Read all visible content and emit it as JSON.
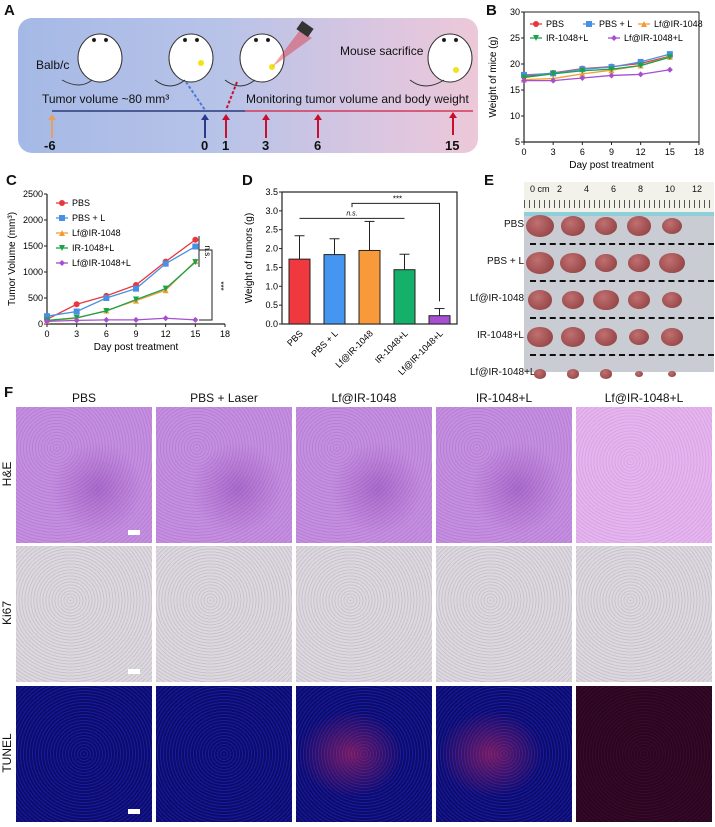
{
  "panels": {
    "A": {
      "label": "A",
      "strain": "Balb/c",
      "left_caption": "Tumor volume ~80 mm³",
      "right_caption": "Monitoring tumor volume and body weight",
      "sacrifice_caption": "Mouse sacrifice",
      "timeline_days": [
        "-6",
        "0",
        "1",
        "3",
        "6",
        "15"
      ],
      "colors": {
        "bg_left": "#a9bde6",
        "bg_right": "#e8c9dc",
        "line_left": "#2a3a7a",
        "line_right": "#d23a5a",
        "arrow_start": "#e8a060",
        "arrow_blue": "#2a3a8a",
        "arrow_red": "#c8102e"
      }
    },
    "B": {
      "label": "B"
    },
    "C": {
      "label": "C"
    },
    "D": {
      "label": "D"
    },
    "E": {
      "label": "E",
      "ruler_labels": [
        "0 cm",
        "2",
        "4",
        "6",
        "8",
        "10",
        "12"
      ],
      "rows": [
        "PBS",
        "PBS + L",
        "Lf@IR-1048",
        "IR-1048+L",
        "Lf@IR-1048+L"
      ]
    },
    "F": {
      "label": "F",
      "columns": [
        "PBS",
        "PBS + Laser",
        "Lf@IR-1048",
        "IR-1048+L",
        "Lf@IR-1048+L"
      ],
      "rows": [
        "H&E",
        "Ki67",
        "TUNEL"
      ]
    }
  },
  "chart_data": [
    {
      "id": "B",
      "type": "line",
      "title": "",
      "xlabel": "Day post treatment",
      "ylabel": "Weight of mice (g)",
      "x": [
        0,
        3,
        6,
        9,
        12,
        15
      ],
      "xlim": [
        0,
        18
      ],
      "ylim": [
        5,
        30
      ],
      "xticks": [
        0,
        3,
        6,
        9,
        12,
        15,
        18
      ],
      "yticks": [
        5,
        10,
        15,
        20,
        25,
        30
      ],
      "legend_position": "top-inside",
      "series": [
        {
          "name": "PBS",
          "color": "#e8383d",
          "marker": "circle",
          "values": [
            17.6,
            18.3,
            19.1,
            19.5,
            20.1,
            21.5
          ]
        },
        {
          "name": "PBS + L",
          "color": "#4a90e2",
          "marker": "square",
          "values": [
            17.9,
            18.2,
            19.0,
            19.4,
            20.4,
            21.9
          ]
        },
        {
          "name": "Lf@IR-1048",
          "color": "#f39c34",
          "marker": "triangle-up",
          "values": [
            17.0,
            17.2,
            18.1,
            18.8,
            19.7,
            21.4
          ]
        },
        {
          "name": "IR-1048+L",
          "color": "#1aa34a",
          "marker": "triangle-down",
          "values": [
            17.4,
            18.1,
            18.7,
            19.0,
            19.7,
            21.3
          ]
        },
        {
          "name": "Lf@IR-1048+L",
          "color": "#a64fd1",
          "marker": "diamond",
          "values": [
            16.8,
            16.8,
            17.3,
            17.8,
            18.0,
            18.9
          ]
        }
      ]
    },
    {
      "id": "C",
      "type": "line",
      "title": "",
      "xlabel": "Day post treatment",
      "ylabel": "Tumor Volume (mm³)",
      "x": [
        0,
        3,
        6,
        9,
        12,
        15
      ],
      "xlim": [
        0,
        18
      ],
      "ylim": [
        0,
        2500
      ],
      "xticks": [
        0,
        3,
        6,
        9,
        12,
        15,
        18
      ],
      "yticks": [
        0,
        500,
        1000,
        1500,
        2000,
        2500
      ],
      "legend_position": "upper-left",
      "annotations": [
        "n.s.",
        "***"
      ],
      "series": [
        {
          "name": "PBS",
          "color": "#e8383d",
          "marker": "circle",
          "values": [
            90,
            380,
            540,
            750,
            1200,
            1620
          ]
        },
        {
          "name": "PBS + L",
          "color": "#4a90e2",
          "marker": "square",
          "values": [
            150,
            240,
            500,
            680,
            1160,
            1490
          ]
        },
        {
          "name": "Lf@IR-1048",
          "color": "#f39c34",
          "marker": "triangle-up",
          "values": [
            60,
            110,
            260,
            450,
            650,
            1210
          ]
        },
        {
          "name": "IR-1048+L",
          "color": "#1aa34a",
          "marker": "triangle-down",
          "values": [
            70,
            120,
            250,
            470,
            680,
            1190
          ]
        },
        {
          "name": "Lf@IR-1048+L",
          "color": "#a64fd1",
          "marker": "diamond",
          "values": [
            50,
            70,
            80,
            80,
            110,
            80
          ]
        }
      ]
    },
    {
      "id": "D",
      "type": "bar",
      "title": "",
      "xlabel": "",
      "ylabel": "Weight of tumors (g)",
      "categories": [
        "PBS",
        "PBS + L",
        "Lf@IR-1048",
        "IR-1048+L",
        "Lf@IR-1048+L"
      ],
      "values": [
        1.72,
        1.84,
        1.95,
        1.44,
        0.22
      ],
      "errors": [
        0.62,
        0.42,
        0.77,
        0.41,
        0.19
      ],
      "colors": [
        "#f0393e",
        "#4596f0",
        "#f89a3a",
        "#15b06a",
        "#a64fd1"
      ],
      "ylim": [
        0,
        3.5
      ],
      "yticks": [
        0.0,
        0.5,
        1.0,
        1.5,
        2.0,
        2.5,
        3.0,
        3.5
      ],
      "annotations": [
        "n.s.",
        "***"
      ]
    }
  ]
}
